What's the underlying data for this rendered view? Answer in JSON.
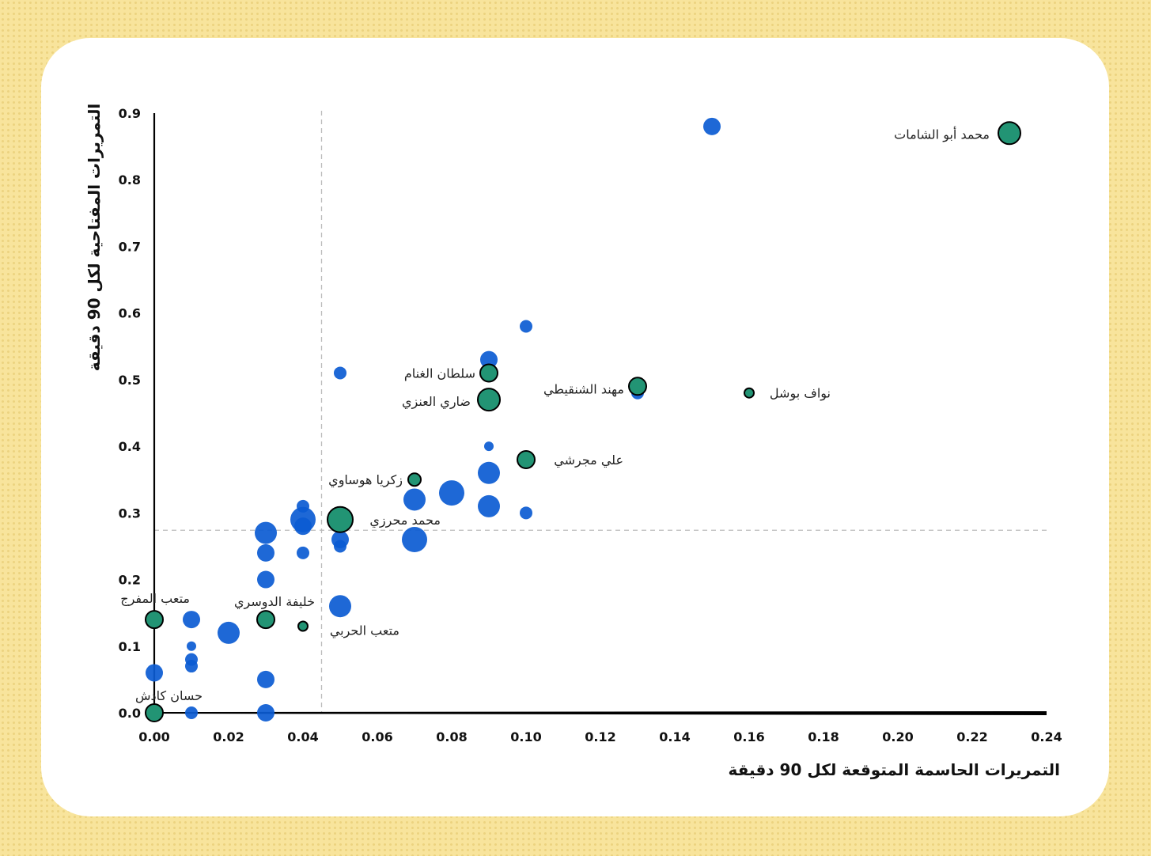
{
  "chart_data": {
    "type": "scatter",
    "title": "",
    "xlabel": "التمريرات الحاسمة المتوقعة لكل 90 دقيقة",
    "ylabel": "التمريرات المفتاحية لكل 90 دقيقة",
    "xlim": [
      0,
      0.24
    ],
    "ylim": [
      0,
      0.9
    ],
    "xticks": [
      "0.00",
      "0.02",
      "0.04",
      "0.06",
      "0.08",
      "0.10",
      "0.12",
      "0.14",
      "0.16",
      "0.18",
      "0.20",
      "0.22",
      "0.24"
    ],
    "yticks": [
      "0.0",
      "0.1",
      "0.2",
      "0.3",
      "0.4",
      "0.5",
      "0.6",
      "0.7",
      "0.8",
      "0.9"
    ],
    "grid": false,
    "reference_lines": {
      "x": 0.045,
      "y": 0.274
    },
    "colors": {
      "other": "#0b5bd3",
      "highlighted": "#229474",
      "background": "#f8e49c"
    },
    "size_note_relative": true,
    "others": [
      {
        "x": 0.15,
        "y": 0.88,
        "size": 2
      },
      {
        "x": 0.1,
        "y": 0.58,
        "size": 1
      },
      {
        "x": 0.09,
        "y": 0.53,
        "size": 2
      },
      {
        "x": 0.05,
        "y": 0.51,
        "size": 1
      },
      {
        "x": 0.13,
        "y": 0.48,
        "size": 1
      },
      {
        "x": 0.09,
        "y": 0.4,
        "size": 0
      },
      {
        "x": 0.09,
        "y": 0.36,
        "size": 3
      },
      {
        "x": 0.08,
        "y": 0.33,
        "size": 4
      },
      {
        "x": 0.07,
        "y": 0.32,
        "size": 3
      },
      {
        "x": 0.09,
        "y": 0.31,
        "size": 3
      },
      {
        "x": 0.1,
        "y": 0.3,
        "size": 1
      },
      {
        "x": 0.04,
        "y": 0.31,
        "size": 1
      },
      {
        "x": 0.04,
        "y": 0.29,
        "size": 4
      },
      {
        "x": 0.04,
        "y": 0.28,
        "size": 2
      },
      {
        "x": 0.03,
        "y": 0.27,
        "size": 3
      },
      {
        "x": 0.05,
        "y": 0.26,
        "size": 2
      },
      {
        "x": 0.05,
        "y": 0.25,
        "size": 1
      },
      {
        "x": 0.07,
        "y": 0.26,
        "size": 4
      },
      {
        "x": 0.03,
        "y": 0.24,
        "size": 2
      },
      {
        "x": 0.04,
        "y": 0.24,
        "size": 1
      },
      {
        "x": 0.03,
        "y": 0.2,
        "size": 2
      },
      {
        "x": 0.05,
        "y": 0.16,
        "size": 3
      },
      {
        "x": 0.01,
        "y": 0.14,
        "size": 2
      },
      {
        "x": 0.02,
        "y": 0.12,
        "size": 3
      },
      {
        "x": 0.01,
        "y": 0.1,
        "size": 0
      },
      {
        "x": 0.01,
        "y": 0.08,
        "size": 1
      },
      {
        "x": 0.01,
        "y": 0.07,
        "size": 1
      },
      {
        "x": 0.0,
        "y": 0.06,
        "size": 2
      },
      {
        "x": 0.03,
        "y": 0.05,
        "size": 2
      },
      {
        "x": 0.03,
        "y": 0.0,
        "size": 2
      },
      {
        "x": 0.01,
        "y": 0.0,
        "size": 1
      }
    ],
    "highlighted": [
      {
        "name": "محمد أبو الشامات",
        "x": 0.23,
        "y": 0.87,
        "size": 3
      },
      {
        "name": "سلطان الغنام",
        "x": 0.09,
        "y": 0.51,
        "size": 2
      },
      {
        "name": "ضاري العنزي",
        "x": 0.09,
        "y": 0.47,
        "size": 3
      },
      {
        "name": "مهند الشنقيطي",
        "x": 0.13,
        "y": 0.49,
        "size": 2
      },
      {
        "name": "نواف بوشل",
        "x": 0.16,
        "y": 0.48,
        "size": 0
      },
      {
        "name": "علي مجرشي",
        "x": 0.1,
        "y": 0.38,
        "size": 2
      },
      {
        "name": "زكريا هوساوي",
        "x": 0.07,
        "y": 0.35,
        "size": 1
      },
      {
        "name": "محمد محرزي",
        "x": 0.05,
        "y": 0.29,
        "size": 4
      },
      {
        "name": "متعب المفرج",
        "x": 0.0,
        "y": 0.14,
        "size": 2
      },
      {
        "name": "خليفة الدوسري",
        "x": 0.03,
        "y": 0.14,
        "size": 2
      },
      {
        "name": "متعب الحربي",
        "x": 0.04,
        "y": 0.13,
        "size": 0
      },
      {
        "name": "حسان كادش",
        "x": 0.0,
        "y": 0.0,
        "size": 2
      }
    ]
  }
}
